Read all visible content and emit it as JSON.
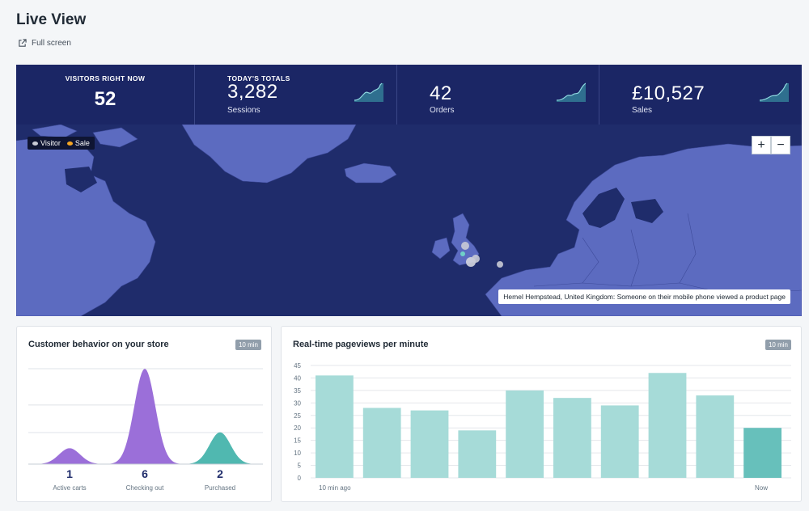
{
  "page": {
    "title": "Live View",
    "full_screen_label": "Full screen"
  },
  "stats": {
    "visitors": {
      "label": "VISITORS RIGHT NOW",
      "value": "52"
    },
    "totals_label": "TODAY'S TOTALS",
    "sessions": {
      "value": "3,282",
      "label": "Sessions"
    },
    "orders": {
      "value": "42",
      "label": "Orders"
    },
    "sales": {
      "value": "£10,527",
      "label": "Sales"
    }
  },
  "map": {
    "legend": {
      "visitor": "Visitor",
      "sale": "Sale"
    },
    "zoom_in": "+",
    "zoom_out": "−",
    "tooltip": "Hemel Hempstead, United Kingdom: Someone on their mobile phone viewed a product page"
  },
  "behavior": {
    "title": "Customer behavior on your store",
    "badge": "10 min",
    "items": [
      {
        "count": "1",
        "label": "Active carts",
        "value": 1,
        "color": "#9b6fd9"
      },
      {
        "count": "6",
        "label": "Checking out",
        "value": 6,
        "color": "#9b6fd9"
      },
      {
        "count": "2",
        "label": "Purchased",
        "value": 2,
        "color": "#50b8b0"
      }
    ]
  },
  "pageviews": {
    "title": "Real-time pageviews per minute",
    "badge": "10 min",
    "x_start": "10 min ago",
    "x_end": "Now"
  },
  "colors": {
    "navy": "#1f2c6b",
    "land": "#5c6bc0",
    "bar": "#a6dbd8",
    "bar_current": "#67c0bb"
  },
  "chart_data": {
    "type": "bar",
    "title": "Real-time pageviews per minute",
    "categories": [
      "10 min ago",
      "",
      "",
      "",
      "",
      "",
      "",
      "",
      "",
      "Now"
    ],
    "values": [
      41,
      28,
      27,
      19,
      35,
      32,
      29,
      42,
      33,
      20
    ],
    "ylim": [
      0,
      45
    ],
    "yticks": [
      0,
      5,
      10,
      15,
      20,
      25,
      30,
      35,
      40,
      45
    ],
    "grid": true
  }
}
